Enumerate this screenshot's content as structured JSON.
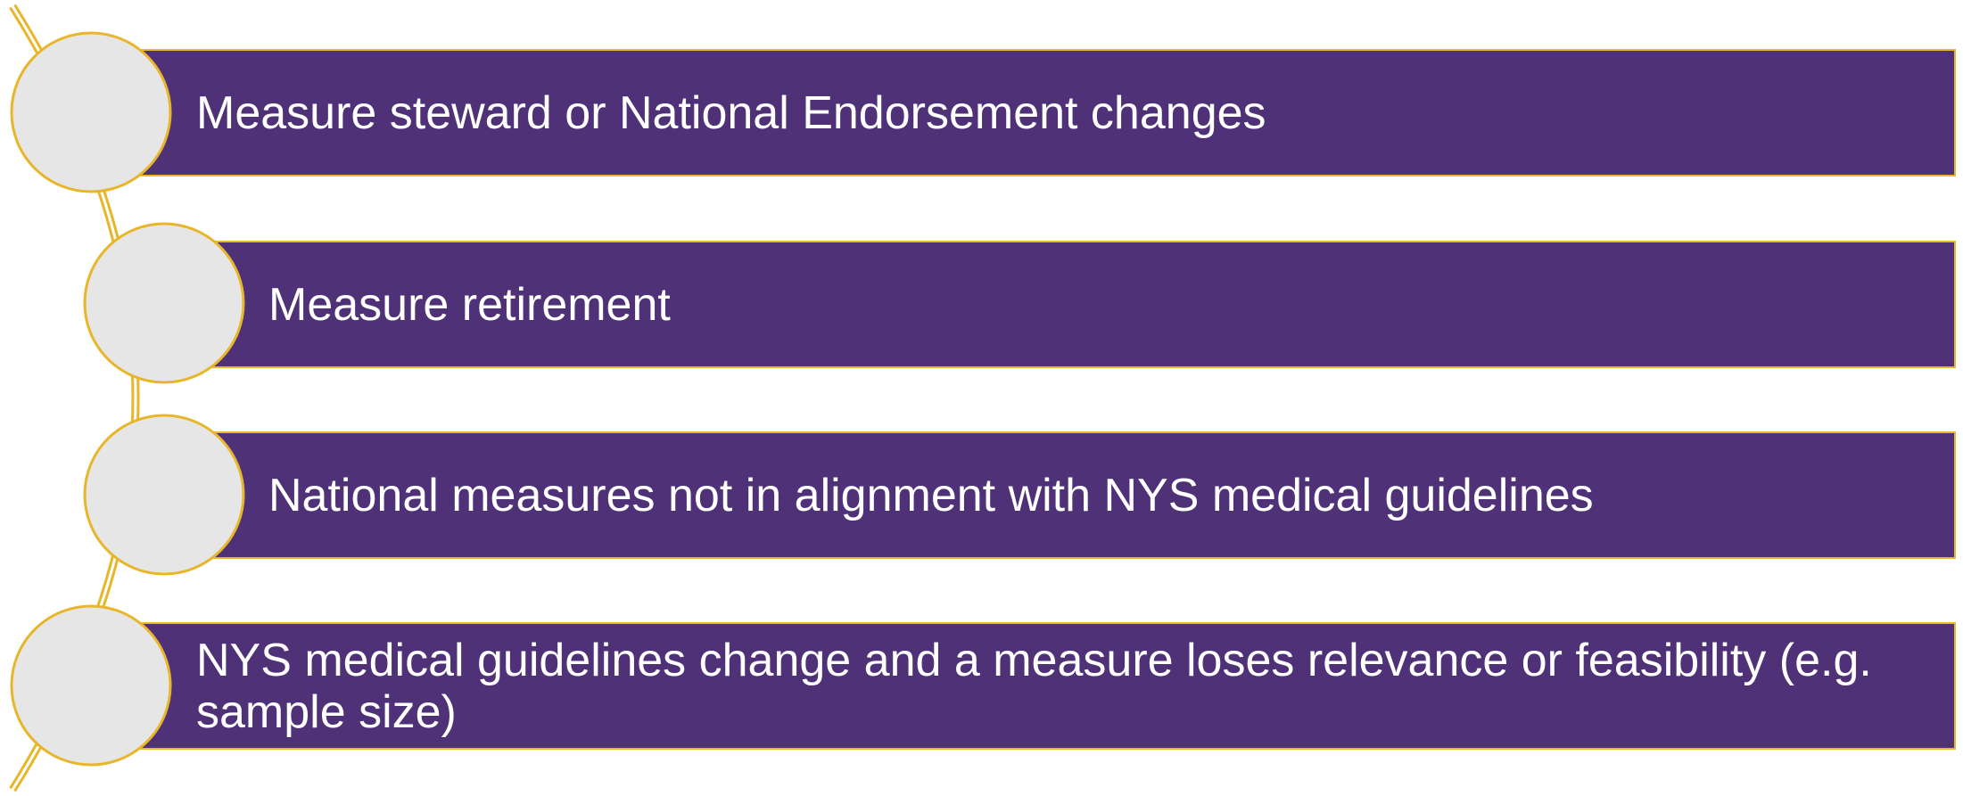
{
  "items": [
    {
      "label": "Measure steward or National Endorsement changes"
    },
    {
      "label": "Measure retirement"
    },
    {
      "label": "National measures not in alignment with NYS medical guidelines"
    },
    {
      "label": "NYS medical guidelines change and a measure loses relevance or feasibility (e.g. sample size)"
    }
  ]
}
